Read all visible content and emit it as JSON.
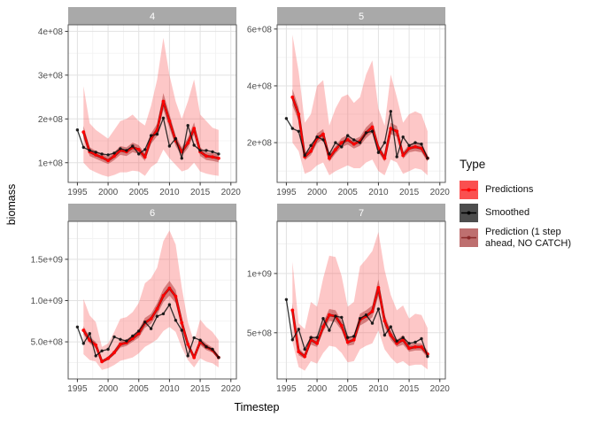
{
  "chart_data": {
    "type": "line",
    "title": "",
    "xlabel": "Timestep",
    "ylabel": "biomass",
    "values_unit": "1e+08",
    "grid": true,
    "legend_position": "right",
    "xlim": [
      1993.5,
      2020.9
    ],
    "x_ticks": [
      {
        "v": 1995,
        "label": "1995"
      },
      {
        "v": 2000,
        "label": "2000"
      },
      {
        "v": 2005,
        "label": "2005"
      },
      {
        "v": 2010,
        "label": "2010"
      },
      {
        "v": 2015,
        "label": "2015"
      },
      {
        "v": 2020,
        "label": "2020"
      }
    ],
    "x_minor": [
      1997.5,
      2002.5,
      2007.5,
      2012.5,
      2017.5
    ],
    "years_smoothed": [
      1995,
      1996,
      1997,
      1998,
      1999,
      2000,
      2001,
      2002,
      2003,
      2004,
      2005,
      2006,
      2007,
      2008,
      2009,
      2010,
      2011,
      2012,
      2013,
      2014,
      2015,
      2016,
      2017,
      2018
    ],
    "years_pred": [
      1996,
      1997,
      1998,
      1999,
      2000,
      2001,
      2002,
      2003,
      2004,
      2005,
      2006,
      2007,
      2008,
      2009,
      2010,
      2011,
      2012,
      2013,
      2014,
      2015,
      2016,
      2017,
      2018
    ],
    "legend": {
      "title": "Type",
      "entries": [
        {
          "label": "Predictions",
          "fill": "#FA5050",
          "line": "#FF0000"
        },
        {
          "label": "Smoothed",
          "fill": "#4D4D4D",
          "line": "#000000"
        },
        {
          "label": "Prediction (1 step\n ahead, NO CATCH)",
          "fill": "#BE6F6F",
          "line": "#8B2A2A"
        }
      ]
    },
    "colors": {
      "ribbon": "rgba(249,85,85,0.33)",
      "ribbon_inner": "rgba(165,35,35,0.45)",
      "predictions": "#FF0000",
      "pred1_line": "#8B1A1A",
      "smoothed": "#111111",
      "strip_fill": "#A9A9A9",
      "strip_text": "#FFFFFF",
      "panel_bg": "#FFFFFF",
      "panel_border": "#595959",
      "grid_major": "#E2E2E2",
      "grid_minor": "#F1F1F1",
      "axis_text": "#4D4D4D",
      "tick_mark": "#333333"
    },
    "panels": [
      {
        "facet": "4",
        "ylim": [
          0.55,
          4.15
        ],
        "y_ticks": [
          {
            "v": 1,
            "label": "1e+08"
          },
          {
            "v": 2,
            "label": "2e+08"
          },
          {
            "v": 3,
            "label": "3e+08"
          },
          {
            "v": 4,
            "label": "4e+08"
          }
        ],
        "y_minor": [
          1.5,
          2.5,
          3.5
        ],
        "smoothed": [
          1.75,
          1.35,
          1.28,
          1.24,
          1.2,
          1.18,
          1.22,
          1.32,
          1.28,
          1.38,
          1.2,
          1.3,
          1.62,
          1.65,
          2.02,
          1.38,
          1.55,
          1.1,
          1.85,
          1.4,
          1.28,
          1.28,
          1.25,
          1.2
        ],
        "predictions": [
          1.7,
          1.25,
          1.18,
          1.12,
          1.05,
          1.15,
          1.28,
          1.25,
          1.35,
          1.3,
          1.13,
          1.55,
          1.75,
          2.4,
          1.95,
          1.5,
          1.25,
          1.45,
          1.78,
          1.25,
          1.15,
          1.13,
          1.1
        ],
        "ribbon_lo": [
          1.0,
          0.85,
          0.78,
          0.72,
          0.68,
          0.72,
          0.78,
          0.78,
          0.82,
          0.8,
          0.7,
          0.9,
          1.0,
          1.3,
          1.1,
          0.95,
          0.8,
          0.85,
          1.0,
          0.8,
          0.75,
          0.72,
          0.7
        ],
        "ribbon_hi": [
          2.75,
          1.9,
          1.75,
          1.65,
          1.55,
          1.75,
          1.95,
          2.0,
          2.1,
          1.95,
          1.85,
          2.3,
          2.9,
          3.85,
          3.0,
          2.4,
          2.0,
          2.4,
          2.9,
          2.1,
          1.95,
          1.8,
          1.75
        ],
        "pred1_lo": [
          1.56,
          1.15,
          1.09,
          1.03,
          0.97,
          1.06,
          1.18,
          1.15,
          1.24,
          1.2,
          1.04,
          1.43,
          1.61,
          2.21,
          1.79,
          1.38,
          1.15,
          1.33,
          1.64,
          1.15,
          1.06,
          1.04,
          1.01
        ],
        "pred1_hi": [
          1.84,
          1.35,
          1.27,
          1.21,
          1.13,
          1.24,
          1.38,
          1.35,
          1.46,
          1.4,
          1.22,
          1.67,
          1.89,
          2.59,
          2.11,
          1.62,
          1.35,
          1.57,
          1.92,
          1.35,
          1.24,
          1.22,
          1.19
        ]
      },
      {
        "facet": "5",
        "ylim": [
          0.6,
          6.15
        ],
        "y_ticks": [
          {
            "v": 2,
            "label": "2e+08"
          },
          {
            "v": 4,
            "label": "4e+08"
          },
          {
            "v": 6,
            "label": "6e+08"
          }
        ],
        "y_minor": [
          1,
          3,
          5
        ],
        "smoothed": [
          2.85,
          2.5,
          2.4,
          1.55,
          1.9,
          2.2,
          2.1,
          1.6,
          2.0,
          1.85,
          2.25,
          2.1,
          2.0,
          2.35,
          2.4,
          1.65,
          2.0,
          3.1,
          1.5,
          2.2,
          1.9,
          2.0,
          1.95,
          1.45
        ],
        "predictions": [
          3.6,
          3.0,
          1.5,
          1.7,
          2.15,
          2.3,
          1.45,
          1.75,
          2.0,
          2.1,
          1.95,
          2.05,
          2.35,
          2.55,
          1.8,
          1.45,
          2.5,
          2.4,
          1.55,
          1.8,
          1.85,
          1.8,
          1.45
        ],
        "ribbon_lo": [
          2.0,
          1.7,
          0.9,
          1.0,
          1.2,
          1.3,
          0.85,
          1.0,
          1.1,
          1.2,
          1.1,
          1.1,
          1.3,
          1.4,
          1.0,
          0.85,
          1.4,
          1.3,
          0.9,
          1.0,
          1.1,
          1.05,
          0.85
        ],
        "ribbon_hi": [
          5.8,
          4.5,
          2.7,
          3.0,
          4.0,
          4.2,
          2.6,
          3.2,
          3.6,
          3.7,
          3.4,
          3.6,
          4.4,
          4.9,
          3.2,
          2.6,
          4.4,
          3.6,
          2.7,
          3.0,
          3.1,
          3.0,
          2.4
        ],
        "pred1_lo": [
          3.31,
          2.76,
          1.38,
          1.56,
          1.98,
          2.12,
          1.33,
          1.61,
          1.84,
          1.93,
          1.79,
          1.89,
          2.16,
          2.35,
          1.66,
          1.33,
          2.3,
          2.21,
          1.43,
          1.66,
          1.7,
          1.66,
          1.33
        ],
        "pred1_hi": [
          3.89,
          3.24,
          1.62,
          1.84,
          2.32,
          2.48,
          1.57,
          1.89,
          2.16,
          2.27,
          2.11,
          2.21,
          2.54,
          2.75,
          1.94,
          1.57,
          2.7,
          2.59,
          1.67,
          1.94,
          2.0,
          1.94,
          1.57
        ]
      },
      {
        "facet": "6",
        "ylim": [
          0.5,
          19.6
        ],
        "y_ticks": [
          {
            "v": 5,
            "label": "5.0e+08"
          },
          {
            "v": 10,
            "label": "1.0e+09"
          },
          {
            "v": 15,
            "label": "1.5e+09"
          }
        ],
        "y_minor": [
          2.5,
          7.5,
          12.5,
          17.5
        ],
        "smoothed": [
          6.8,
          4.8,
          6.0,
          3.3,
          3.9,
          4.1,
          5.6,
          5.3,
          5.1,
          5.7,
          6.3,
          7.4,
          6.6,
          8.1,
          8.4,
          9.5,
          7.6,
          6.4,
          3.3,
          5.5,
          5.2,
          4.4,
          4.1,
          3.1
        ],
        "predictions": [
          6.4,
          5.2,
          4.6,
          2.6,
          3.0,
          3.7,
          4.7,
          4.9,
          5.4,
          6.0,
          7.3,
          7.8,
          9.0,
          10.6,
          11.5,
          10.5,
          7.3,
          4.7,
          3.1,
          5.0,
          4.4,
          4.0,
          3.1
        ],
        "ribbon_lo": [
          3.5,
          2.8,
          2.6,
          1.6,
          1.8,
          2.2,
          2.7,
          2.9,
          3.1,
          3.6,
          4.4,
          4.8,
          5.3,
          6.3,
          6.8,
          6.2,
          4.3,
          2.8,
          1.9,
          3.0,
          2.6,
          2.4,
          1.9
        ],
        "ribbon_hi": [
          10.2,
          8.2,
          7.4,
          4.4,
          4.8,
          6.2,
          7.8,
          8.0,
          8.6,
          9.7,
          12.1,
          12.7,
          14.0,
          17.2,
          18.5,
          16.8,
          11.6,
          7.4,
          5.0,
          7.7,
          6.8,
          6.2,
          5.2
        ],
        "pred1_lo": [
          5.9,
          4.8,
          4.2,
          2.4,
          2.8,
          3.4,
          4.3,
          4.5,
          5.0,
          5.5,
          6.7,
          7.2,
          8.3,
          9.8,
          10.6,
          9.7,
          6.7,
          4.3,
          2.9,
          4.6,
          4.0,
          3.7,
          2.9
        ],
        "pred1_hi": [
          6.9,
          5.6,
          5.0,
          2.8,
          3.2,
          4.0,
          5.1,
          5.3,
          5.8,
          6.5,
          7.9,
          8.4,
          9.7,
          11.4,
          12.4,
          11.3,
          7.9,
          5.1,
          3.3,
          5.4,
          4.8,
          4.3,
          3.3
        ]
      },
      {
        "facet": "7",
        "ylim": [
          1.1,
          14.4
        ],
        "y_ticks": [
          {
            "v": 5,
            "label": "5e+08"
          },
          {
            "v": 10,
            "label": "1e+09"
          }
        ],
        "y_minor": [
          2.5,
          7.5,
          12.5
        ],
        "smoothed": [
          7.8,
          4.4,
          5.3,
          3.6,
          4.6,
          4.6,
          6.2,
          5.2,
          6.4,
          6.3,
          4.6,
          4.7,
          6.2,
          6.5,
          5.8,
          7.0,
          4.8,
          5.5,
          4.3,
          4.6,
          4.1,
          4.2,
          4.5,
          3.0
        ],
        "predictions": [
          6.9,
          3.4,
          3.0,
          4.4,
          4.1,
          5.5,
          6.5,
          6.4,
          5.6,
          4.2,
          4.4,
          6.1,
          6.4,
          6.8,
          8.8,
          6.0,
          4.8,
          4.1,
          4.4,
          3.7,
          3.8,
          3.8,
          3.2
        ],
        "ribbon_lo": [
          4.2,
          2.1,
          1.8,
          2.6,
          2.4,
          3.3,
          3.9,
          3.8,
          3.3,
          2.5,
          2.6,
          3.6,
          3.9,
          4.1,
          5.2,
          3.6,
          2.9,
          2.4,
          2.6,
          2.2,
          2.3,
          2.3,
          1.9
        ],
        "ribbon_hi": [
          11.0,
          5.8,
          5.3,
          7.6,
          7.2,
          9.6,
          11.5,
          11.4,
          9.8,
          7.2,
          7.6,
          10.6,
          11.2,
          11.9,
          13.5,
          10.3,
          8.2,
          6.9,
          7.3,
          6.2,
          6.6,
          6.5,
          5.4
        ],
        "pred1_lo": [
          6.3,
          3.1,
          2.8,
          4.0,
          3.8,
          5.1,
          6.0,
          5.9,
          5.2,
          3.9,
          4.0,
          5.6,
          5.9,
          6.3,
          8.1,
          5.5,
          4.4,
          3.8,
          4.0,
          3.4,
          3.5,
          3.5,
          2.9
        ],
        "pred1_hi": [
          7.5,
          3.7,
          3.2,
          4.8,
          4.4,
          5.9,
          7.0,
          6.9,
          6.0,
          4.5,
          4.8,
          6.6,
          6.9,
          7.3,
          9.5,
          6.5,
          5.2,
          4.4,
          4.8,
          4.0,
          4.1,
          4.1,
          3.5
        ]
      }
    ]
  }
}
